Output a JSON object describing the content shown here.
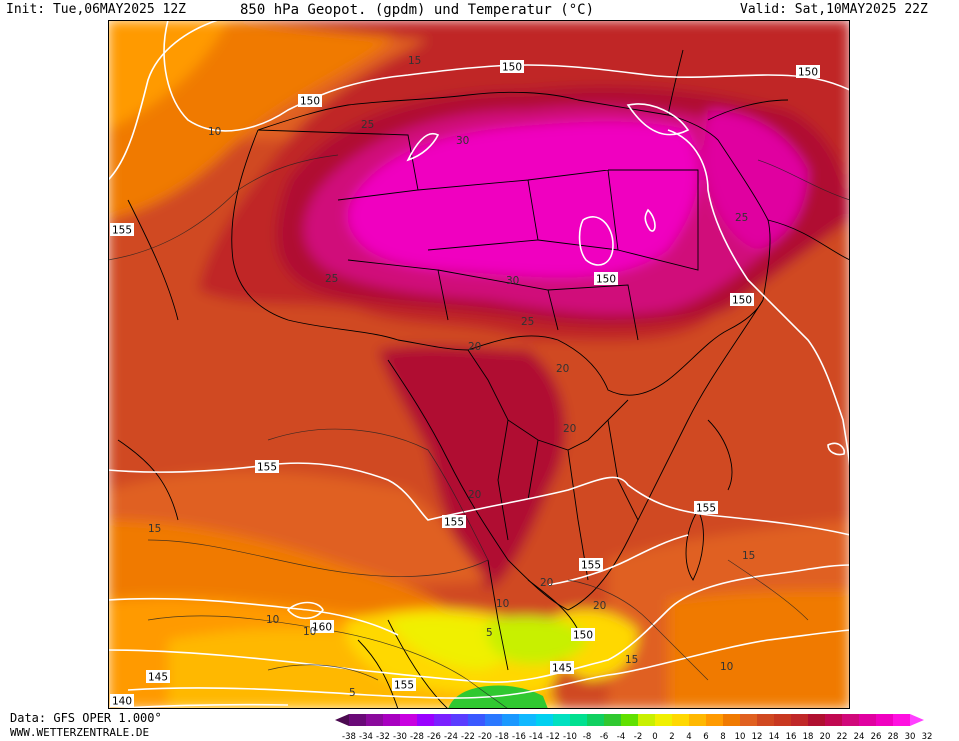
{
  "header": {
    "init": "Init: Tue,06MAY2025 12Z",
    "title": "850 hPa Geopot. (gpdm) und Temperatur (°C)",
    "valid": "Valid: Sat,10MAY2025 22Z"
  },
  "footer": {
    "source": "Data: GFS OPER 1.000°",
    "site": "WWW.WETTERZENTRALE.DE"
  },
  "legend": {
    "ticks": [
      "-38",
      "-34",
      "-32",
      "-30",
      "-28",
      "-26",
      "-24",
      "-22",
      "-20",
      "-18",
      "-16",
      "-14",
      "-12",
      "-10",
      "-8",
      "-6",
      "-4",
      "-2",
      "0",
      "2",
      "4",
      "6",
      "8",
      "10",
      "12",
      "14",
      "16",
      "18",
      "20",
      "22",
      "24",
      "26",
      "28",
      "30",
      "32"
    ],
    "colors": [
      "#4b0a50",
      "#6a0a78",
      "#8a0a9c",
      "#a800c0",
      "#c800e0",
      "#9a00ff",
      "#7a20ff",
      "#5a3cff",
      "#3a58ff",
      "#2a78ff",
      "#1a98ff",
      "#10b8ff",
      "#00d0f0",
      "#00e0c0",
      "#00e090",
      "#10d060",
      "#30c830",
      "#60e000",
      "#c8f000",
      "#f0f000",
      "#ffd800",
      "#ffb800",
      "#ff9a00",
      "#f07a00",
      "#e06020",
      "#d04820",
      "#c83820",
      "#c02828",
      "#b01030",
      "#c00850",
      "#d0087a",
      "#e000a0",
      "#f000c0",
      "#ff10e0",
      "#ff40ff"
    ]
  },
  "map": {
    "contour_labels": [
      {
        "text": "150",
        "kind": "geopotential"
      },
      {
        "text": "150",
        "kind": "geopotential"
      },
      {
        "text": "150",
        "kind": "geopotential"
      },
      {
        "text": "150",
        "kind": "geopotential"
      },
      {
        "text": "150",
        "kind": "geopotential"
      },
      {
        "text": "150",
        "kind": "geopotential"
      },
      {
        "text": "155",
        "kind": "geopotential"
      },
      {
        "text": "155",
        "kind": "geopotential"
      },
      {
        "text": "155",
        "kind": "geopotential"
      },
      {
        "text": "155",
        "kind": "geopotential"
      },
      {
        "text": "155",
        "kind": "geopotential"
      },
      {
        "text": "155",
        "kind": "geopotential"
      },
      {
        "text": "160",
        "kind": "geopotential"
      },
      {
        "text": "145",
        "kind": "geopotential"
      },
      {
        "text": "145",
        "kind": "geopotential"
      },
      {
        "text": "140",
        "kind": "geopotential"
      },
      {
        "text": "30",
        "kind": "temperature"
      },
      {
        "text": "30",
        "kind": "temperature"
      },
      {
        "text": "25",
        "kind": "temperature"
      },
      {
        "text": "25",
        "kind": "temperature"
      },
      {
        "text": "25",
        "kind": "temperature"
      },
      {
        "text": "25",
        "kind": "temperature"
      },
      {
        "text": "20",
        "kind": "temperature"
      },
      {
        "text": "20",
        "kind": "temperature"
      },
      {
        "text": "20",
        "kind": "temperature"
      },
      {
        "text": "20",
        "kind": "temperature"
      },
      {
        "text": "20",
        "kind": "temperature"
      },
      {
        "text": "20",
        "kind": "temperature"
      },
      {
        "text": "15",
        "kind": "temperature"
      },
      {
        "text": "15",
        "kind": "temperature"
      },
      {
        "text": "15",
        "kind": "temperature"
      },
      {
        "text": "15",
        "kind": "temperature"
      },
      {
        "text": "10",
        "kind": "temperature"
      },
      {
        "text": "10",
        "kind": "temperature"
      },
      {
        "text": "10",
        "kind": "temperature"
      },
      {
        "text": "10",
        "kind": "temperature"
      },
      {
        "text": "10",
        "kind": "temperature"
      },
      {
        "text": "5",
        "kind": "temperature"
      },
      {
        "text": "5",
        "kind": "temperature"
      }
    ]
  }
}
